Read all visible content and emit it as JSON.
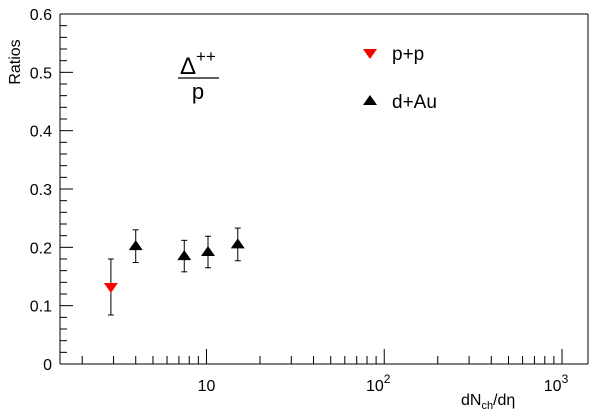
{
  "chart_data": {
    "type": "scatter",
    "title": "",
    "xlabel": {
      "prefix": "dN",
      "sub": "ch",
      "suffix": "/dη"
    },
    "ylabel": "Ratios",
    "xscale": "log",
    "xlim": [
      1.5,
      1400
    ],
    "ylim": [
      0,
      0.6
    ],
    "yticks": [
      "0",
      "0.1",
      "0.2",
      "0.3",
      "0.4",
      "0.5",
      "0.6"
    ],
    "xticks": [
      {
        "base": "10",
        "exp": ""
      },
      {
        "base": "10",
        "exp": "2"
      },
      {
        "base": "10",
        "exp": "3"
      }
    ],
    "annotation": {
      "numerator": "Δ",
      "numerator_sup": "++",
      "denominator": "p"
    },
    "legend": {
      "placement": "top-right"
    },
    "series": [
      {
        "name": "p+p",
        "color": "#ff0000",
        "marker": "triangle-down",
        "points": [
          {
            "x": 2.9,
            "y": 0.132,
            "err": 0.048
          }
        ]
      },
      {
        "name": "d+Au",
        "color": "#000000",
        "marker": "triangle-up",
        "points": [
          {
            "x": 4.0,
            "y": 0.202,
            "err": 0.028
          },
          {
            "x": 7.5,
            "y": 0.185,
            "err": 0.027
          },
          {
            "x": 10.2,
            "y": 0.192,
            "err": 0.027
          },
          {
            "x": 15.0,
            "y": 0.205,
            "err": 0.028
          }
        ]
      }
    ]
  }
}
